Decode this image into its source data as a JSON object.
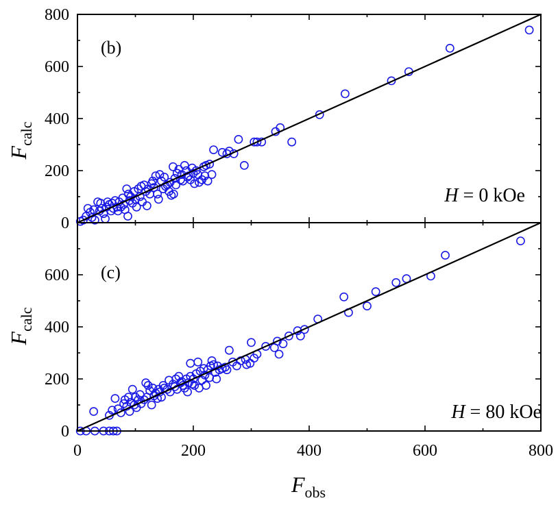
{
  "chart_data": [
    {
      "type": "scatter",
      "panel_label": "(b)",
      "annotation": {
        "variable": "H",
        "text": " = 0 kOe"
      },
      "xlabel": {
        "main": "F",
        "sub": "obs"
      },
      "ylabel": {
        "main": "F",
        "sub": "calc"
      },
      "xlim": [
        0,
        800
      ],
      "ylim": [
        0,
        800
      ],
      "x_ticks": [
        0,
        200,
        400,
        600,
        800
      ],
      "y_ticks": [
        0,
        200,
        400,
        600,
        800
      ],
      "y_tick_labels": [
        "0",
        "200",
        "400",
        "600",
        "800"
      ],
      "show_x_tick_labels": false,
      "grid": false,
      "reference_line": {
        "from": [
          0,
          0
        ],
        "to": [
          800,
          800
        ]
      },
      "marker_color": "#1a1ae6",
      "points": [
        [
          5,
          5
        ],
        [
          10,
          10
        ],
        [
          15,
          25
        ],
        [
          18,
          55
        ],
        [
          22,
          40
        ],
        [
          25,
          20
        ],
        [
          28,
          50
        ],
        [
          30,
          10
        ],
        [
          35,
          80
        ],
        [
          38,
          45
        ],
        [
          40,
          75
        ],
        [
          42,
          55
        ],
        [
          45,
          35
        ],
        [
          48,
          15
        ],
        [
          50,
          60
        ],
        [
          52,
          80
        ],
        [
          55,
          70
        ],
        [
          58,
          45
        ],
        [
          60,
          75
        ],
        [
          62,
          55
        ],
        [
          65,
          85
        ],
        [
          68,
          60
        ],
        [
          70,
          45
        ],
        [
          72,
          80
        ],
        [
          75,
          60
        ],
        [
          78,
          95
        ],
        [
          80,
          70
        ],
        [
          82,
          50
        ],
        [
          85,
          130
        ],
        [
          87,
          25
        ],
        [
          88,
          110
        ],
        [
          90,
          85
        ],
        [
          92,
          100
        ],
        [
          95,
          75
        ],
        [
          98,
          120
        ],
        [
          100,
          90
        ],
        [
          102,
          60
        ],
        [
          105,
          130
        ],
        [
          108,
          100
        ],
        [
          110,
          140
        ],
        [
          112,
          80
        ],
        [
          115,
          145
        ],
        [
          118,
          120
        ],
        [
          120,
          65
        ],
        [
          122,
          130
        ],
        [
          125,
          110
        ],
        [
          128,
          150
        ],
        [
          130,
          160
        ],
        [
          132,
          135
        ],
        [
          135,
          180
        ],
        [
          138,
          110
        ],
        [
          140,
          90
        ],
        [
          142,
          185
        ],
        [
          145,
          160
        ],
        [
          148,
          130
        ],
        [
          150,
          175
        ],
        [
          152,
          140
        ],
        [
          155,
          145
        ],
        [
          158,
          120
        ],
        [
          160,
          155
        ],
        [
          162,
          105
        ],
        [
          165,
          215
        ],
        [
          166,
          110
        ],
        [
          168,
          170
        ],
        [
          170,
          145
        ],
        [
          172,
          190
        ],
        [
          175,
          205
        ],
        [
          178,
          165
        ],
        [
          180,
          185
        ],
        [
          182,
          160
        ],
        [
          185,
          220
        ],
        [
          188,
          200
        ],
        [
          190,
          175
        ],
        [
          192,
          180
        ],
        [
          195,
          165
        ],
        [
          198,
          210
        ],
        [
          200,
          190
        ],
        [
          202,
          150
        ],
        [
          205,
          200
        ],
        [
          208,
          185
        ],
        [
          210,
          155
        ],
        [
          215,
          165
        ],
        [
          218,
          215
        ],
        [
          220,
          180
        ],
        [
          222,
          220
        ],
        [
          225,
          160
        ],
        [
          228,
          225
        ],
        [
          232,
          185
        ],
        [
          235,
          280
        ],
        [
          250,
          270
        ],
        [
          258,
          265
        ],
        [
          262,
          275
        ],
        [
          270,
          265
        ],
        [
          278,
          320
        ],
        [
          288,
          220
        ],
        [
          305,
          310
        ],
        [
          310,
          310
        ],
        [
          318,
          310
        ],
        [
          342,
          350
        ],
        [
          350,
          365
        ],
        [
          370,
          310
        ],
        [
          418,
          415
        ],
        [
          462,
          495
        ],
        [
          542,
          545
        ],
        [
          572,
          580
        ],
        [
          643,
          670
        ],
        [
          780,
          740
        ]
      ]
    },
    {
      "type": "scatter",
      "panel_label": "(c)",
      "annotation": {
        "variable": "H",
        "text": " = 80 kOe"
      },
      "xlabel": {
        "main": "F",
        "sub": "obs"
      },
      "ylabel": {
        "main": "F",
        "sub": "calc"
      },
      "xlim": [
        0,
        800
      ],
      "ylim": [
        0,
        800
      ],
      "x_ticks": [
        0,
        200,
        400,
        600,
        800
      ],
      "x_tick_labels": [
        "0",
        "200",
        "400",
        "600",
        "800"
      ],
      "y_ticks": [
        0,
        200,
        400,
        600
      ],
      "y_tick_labels": [
        "0",
        "200",
        "400",
        "600"
      ],
      "grid": false,
      "reference_line": {
        "from": [
          0,
          0
        ],
        "to": [
          800,
          800
        ]
      },
      "marker_color": "#1a1ae6",
      "points": [
        [
          5,
          0
        ],
        [
          15,
          0
        ],
        [
          30,
          0
        ],
        [
          45,
          0
        ],
        [
          55,
          0
        ],
        [
          62,
          0
        ],
        [
          68,
          0
        ],
        [
          28,
          75
        ],
        [
          55,
          60
        ],
        [
          60,
          80
        ],
        [
          65,
          125
        ],
        [
          70,
          85
        ],
        [
          75,
          70
        ],
        [
          80,
          105
        ],
        [
          82,
          120
        ],
        [
          85,
          95
        ],
        [
          88,
          130
        ],
        [
          90,
          75
        ],
        [
          92,
          110
        ],
        [
          95,
          160
        ],
        [
          98,
          100
        ],
        [
          100,
          130
        ],
        [
          102,
          90
        ],
        [
          105,
          120
        ],
        [
          108,
          140
        ],
        [
          110,
          105
        ],
        [
          115,
          120
        ],
        [
          118,
          185
        ],
        [
          120,
          130
        ],
        [
          122,
          175
        ],
        [
          125,
          155
        ],
        [
          128,
          100
        ],
        [
          130,
          165
        ],
        [
          132,
          135
        ],
        [
          135,
          145
        ],
        [
          138,
          125
        ],
        [
          140,
          160
        ],
        [
          142,
          150
        ],
        [
          145,
          130
        ],
        [
          148,
          175
        ],
        [
          150,
          165
        ],
        [
          155,
          160
        ],
        [
          158,
          195
        ],
        [
          160,
          150
        ],
        [
          165,
          180
        ],
        [
          168,
          170
        ],
        [
          170,
          200
        ],
        [
          172,
          160
        ],
        [
          175,
          210
        ],
        [
          178,
          185
        ],
        [
          180,
          190
        ],
        [
          182,
          175
        ],
        [
          185,
          165
        ],
        [
          188,
          200
        ],
        [
          190,
          150
        ],
        [
          192,
          185
        ],
        [
          195,
          210
        ],
        [
          195,
          260
        ],
        [
          198,
          180
        ],
        [
          200,
          200
        ],
        [
          202,
          175
        ],
        [
          205,
          220
        ],
        [
          208,
          265
        ],
        [
          210,
          165
        ],
        [
          212,
          230
        ],
        [
          215,
          195
        ],
        [
          218,
          240
        ],
        [
          220,
          215
        ],
        [
          222,
          175
        ],
        [
          225,
          235
        ],
        [
          228,
          205
        ],
        [
          230,
          250
        ],
        [
          232,
          270
        ],
        [
          235,
          255
        ],
        [
          238,
          225
        ],
        [
          240,
          200
        ],
        [
          242,
          250
        ],
        [
          245,
          235
        ],
        [
          250,
          240
        ],
        [
          255,
          245
        ],
        [
          258,
          235
        ],
        [
          262,
          310
        ],
        [
          268,
          265
        ],
        [
          275,
          250
        ],
        [
          282,
          270
        ],
        [
          290,
          275
        ],
        [
          292,
          255
        ],
        [
          298,
          260
        ],
        [
          300,
          340
        ],
        [
          305,
          280
        ],
        [
          310,
          295
        ],
        [
          325,
          325
        ],
        [
          340,
          320
        ],
        [
          345,
          345
        ],
        [
          348,
          295
        ],
        [
          355,
          335
        ],
        [
          365,
          365
        ],
        [
          380,
          385
        ],
        [
          385,
          365
        ],
        [
          392,
          390
        ],
        [
          415,
          430
        ],
        [
          460,
          515
        ],
        [
          468,
          455
        ],
        [
          500,
          480
        ],
        [
          515,
          535
        ],
        [
          550,
          570
        ],
        [
          568,
          585
        ],
        [
          610,
          595
        ],
        [
          635,
          675
        ],
        [
          765,
          730
        ]
      ]
    }
  ]
}
